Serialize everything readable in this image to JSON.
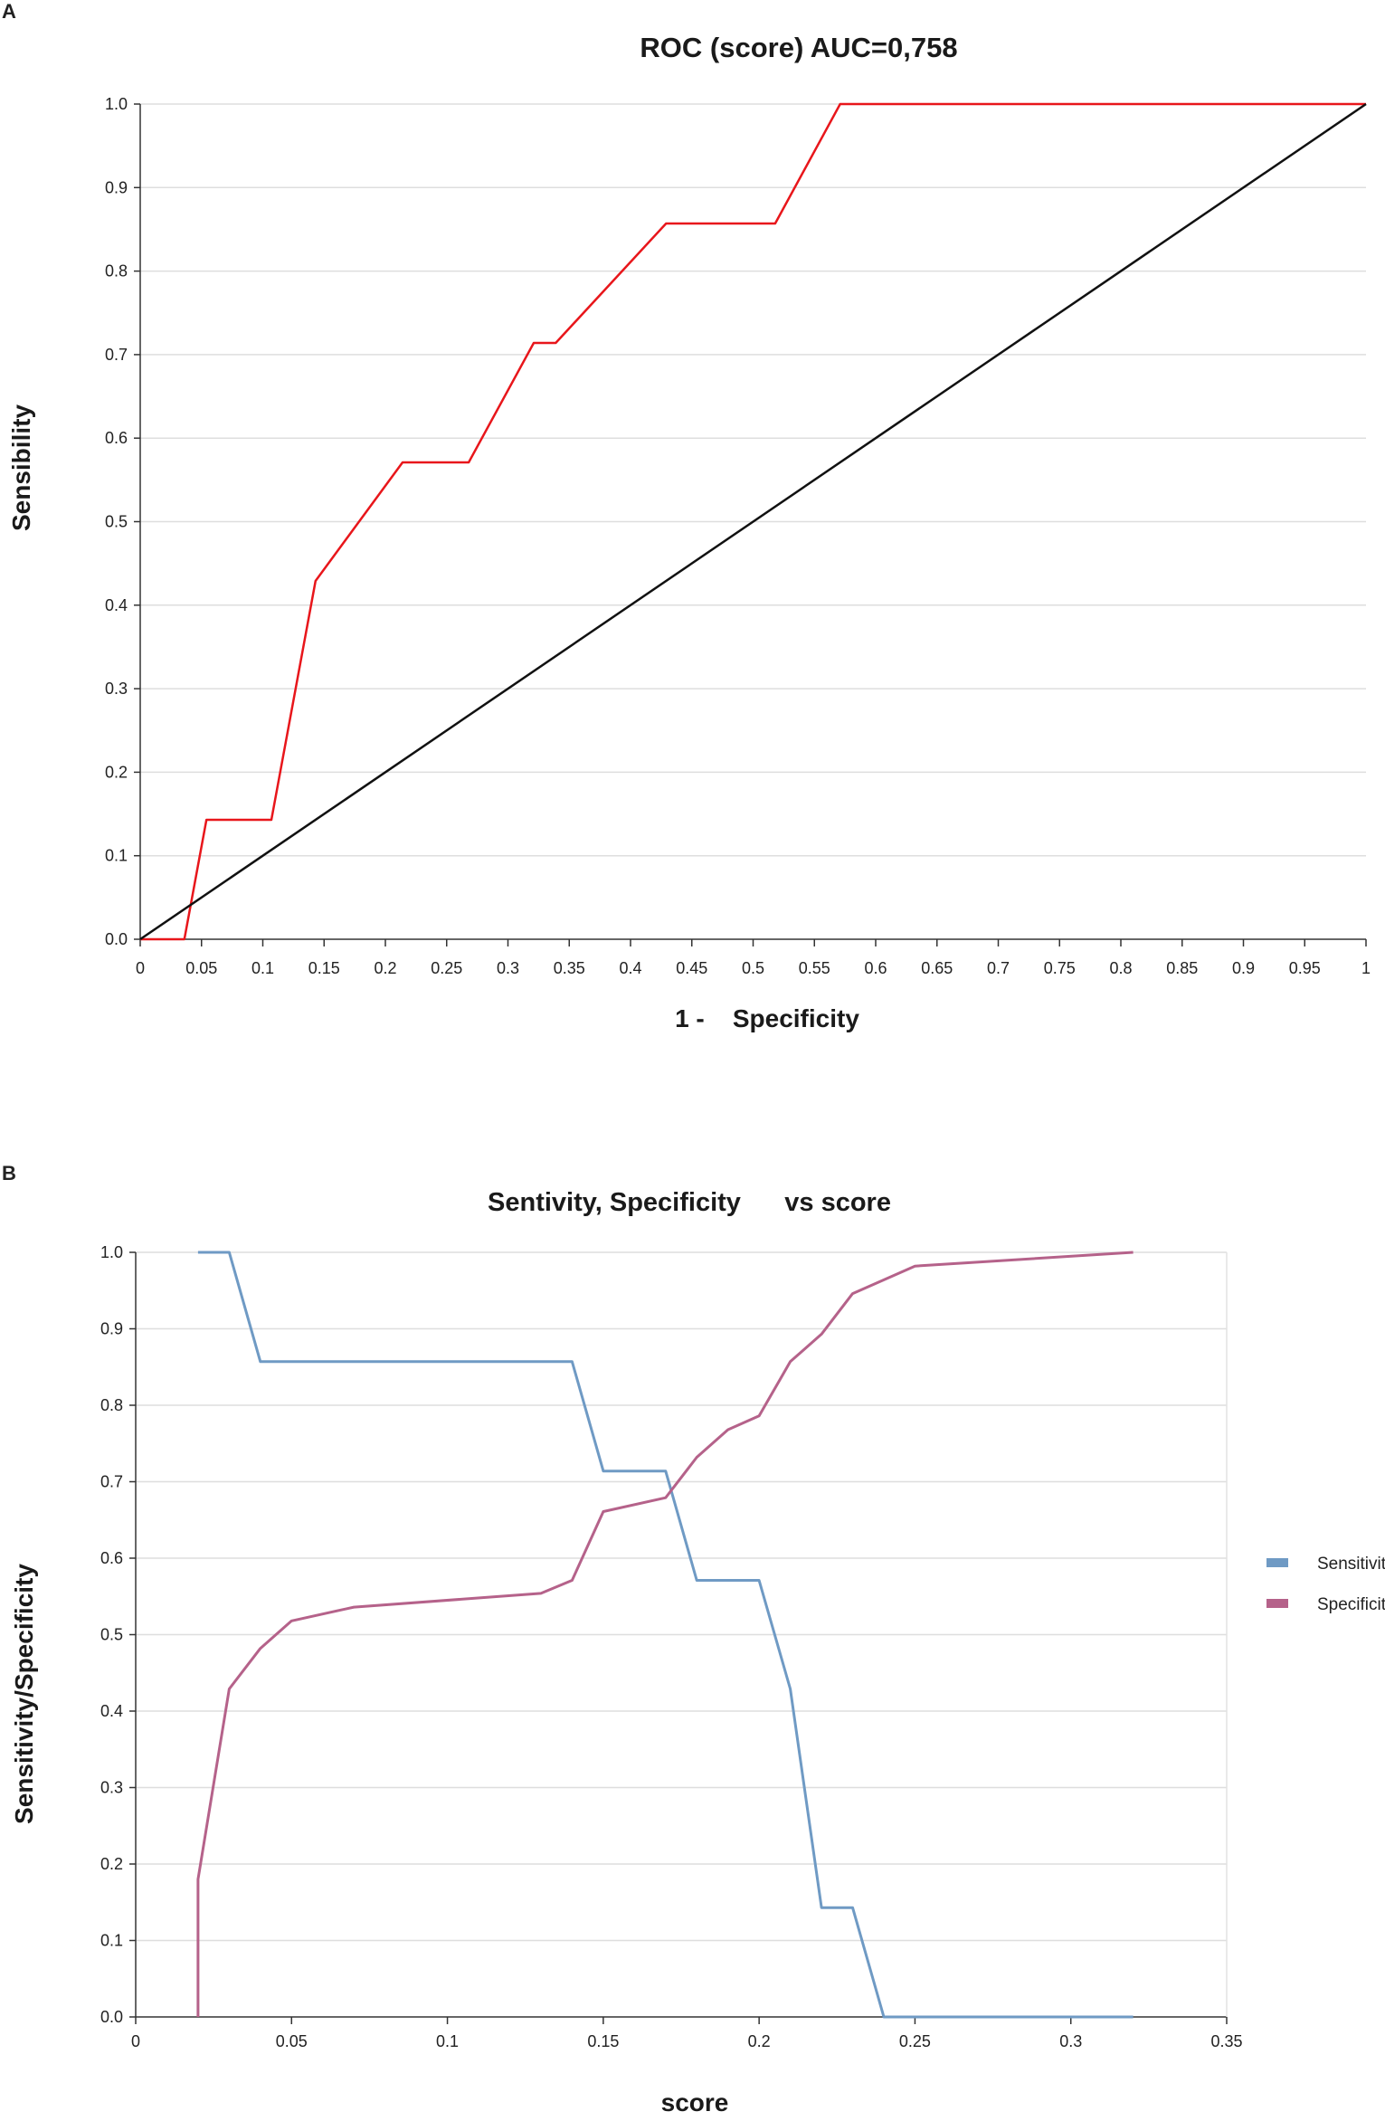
{
  "panels": {
    "a_label": "A",
    "b_label": "B"
  },
  "chart_data": [
    {
      "type": "line",
      "title": "ROC (score) AUC=0,758",
      "xlabel": "1 -    Specificity",
      "ylabel": "Sensibility",
      "xlim": [
        0,
        1
      ],
      "ylim": [
        0,
        1
      ],
      "x_ticks": [
        "0",
        "0.05",
        "0.1",
        "0.15",
        "0.2",
        "0.25",
        "0.3",
        "0.35",
        "0.4",
        "0.45",
        "0.5",
        "0.55",
        "0.6",
        "0.65",
        "0.7",
        "0.75",
        "0.8",
        "0.85",
        "0.9",
        "0.95",
        "1"
      ],
      "y_ticks": [
        "0.0",
        "0.1",
        "0.2",
        "0.3",
        "0.4",
        "0.5",
        "0.6",
        "0.7",
        "0.8",
        "0.9",
        "1.0"
      ],
      "grid": "horizontal",
      "series": [
        {
          "name": "ROC",
          "color": "#e8161b",
          "x": [
            0,
            0.036,
            0.054,
            0.071,
            0.107,
            0.143,
            0.214,
            0.268,
            0.321,
            0.339,
            0.429,
            0.518,
            0.571,
            1.0
          ],
          "y": [
            0,
            0,
            0.143,
            0.143,
            0.143,
            0.429,
            0.571,
            0.571,
            0.714,
            0.714,
            0.857,
            0.857,
            1.0,
            1.0
          ]
        },
        {
          "name": "Reference",
          "color": "#111111",
          "x": [
            0,
            1
          ],
          "y": [
            0,
            1
          ]
        }
      ]
    },
    {
      "type": "line",
      "title": "Sentivity, Specificity      vs score",
      "xlabel": "score",
      "ylabel": "Sensitivity/Specificity",
      "xlim": [
        0,
        0.35
      ],
      "ylim": [
        0,
        1
      ],
      "x_ticks": [
        "0",
        "0.05",
        "0.1",
        "0.15",
        "0.2",
        "0.25",
        "0.3",
        "0.35"
      ],
      "y_ticks": [
        "0.0",
        "0.1",
        "0.2",
        "0.3",
        "0.4",
        "0.5",
        "0.6",
        "0.7",
        "0.8",
        "0.9",
        "1.0"
      ],
      "grid": "horizontal",
      "legend": "right",
      "series": [
        {
          "name": "Sensitivity",
          "color": "#6f9ac4",
          "x": [
            0.02,
            0.03,
            0.04,
            0.05,
            0.14,
            0.15,
            0.17,
            0.18,
            0.2,
            0.21,
            0.22,
            0.23,
            0.24,
            0.25,
            0.32
          ],
          "y": [
            1.0,
            1.0,
            0.857,
            0.857,
            0.857,
            0.714,
            0.714,
            0.571,
            0.571,
            0.429,
            0.143,
            0.143,
            0.0,
            0.0,
            0.0
          ]
        },
        {
          "name": "Specificity",
          "color": "#b5628a",
          "x": [
            0.02,
            0.02,
            0.03,
            0.04,
            0.05,
            0.07,
            0.13,
            0.14,
            0.15,
            0.17,
            0.18,
            0.19,
            0.2,
            0.21,
            0.22,
            0.23,
            0.25,
            0.32
          ],
          "y": [
            0.0,
            0.18,
            0.429,
            0.482,
            0.518,
            0.536,
            0.554,
            0.571,
            0.661,
            0.679,
            0.732,
            0.768,
            0.786,
            0.857,
            0.893,
            0.946,
            0.982,
            1.0
          ]
        }
      ]
    }
  ]
}
